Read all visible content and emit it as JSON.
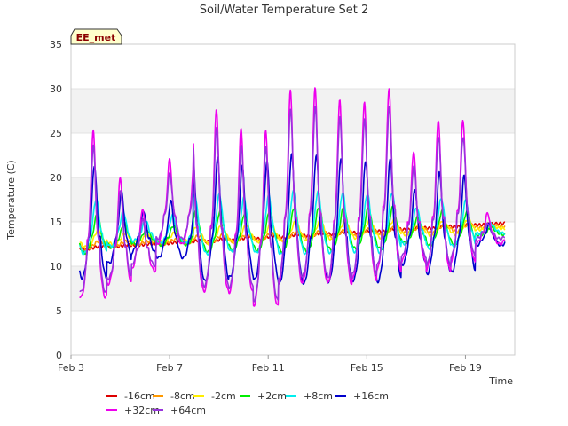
{
  "chart_data": {
    "type": "line",
    "title": "Soil/Water Temperature Set 2",
    "xlabel": "Time",
    "ylabel": "Temperature (C)",
    "badge": "EE_met",
    "ylim": [
      0,
      35
    ],
    "yticks": [
      0,
      5,
      10,
      15,
      20,
      25,
      30,
      35
    ],
    "xlim": [
      "2023-02-03",
      "2023-02-21"
    ],
    "xticks": [
      {
        "label": "Feb 3",
        "day": 3
      },
      {
        "label": "Feb 7",
        "day": 7
      },
      {
        "label": "Feb 11",
        "day": 11
      },
      {
        "label": "Feb 15",
        "day": 15
      },
      {
        "label": "Feb 19",
        "day": 19
      }
    ],
    "x_data_start_day": 3.35,
    "x_data_end_day": 20.6,
    "grid": "horizontal bands",
    "legend_position": "bottom",
    "series": [
      {
        "name": "-16cm",
        "color": "#dd0000",
        "base": 12.0,
        "slope": 0.165,
        "amp": 0.15,
        "phase": 3.4,
        "sharp": 1.0
      },
      {
        "name": "-8cm",
        "color": "#ff9900",
        "base": 12.3,
        "slope": 0.13,
        "amp": 0.6,
        "phase": 3.1,
        "sharp": 1.0
      },
      {
        "name": "-2cm",
        "color": "#ffee00",
        "base": 12.8,
        "slope": 0.09,
        "amp": 1.4,
        "phase": 2.6,
        "sharp": 1.4
      },
      {
        "name": "+2cm",
        "color": "#00ee00",
        "base": 13.0,
        "slope": 0.05,
        "amp": 3.2,
        "phase": 2.0,
        "sharp": 1.8
      },
      {
        "name": "+8cm",
        "color": "#00eeee",
        "base": 13.6,
        "slope": 0.03,
        "amp": 4.6,
        "phase": 1.5,
        "sharp": 2.2
      },
      {
        "name": "+16cm",
        "color": "#0000cc",
        "base": 13.2,
        "slope": 0.0,
        "amp": 9.5,
        "phase": 0.6,
        "sharp": 3.0
      },
      {
        "name": "+32cm",
        "color": "#ee00ee",
        "base": 15.5,
        "slope": 0.0,
        "amp": 12.0,
        "phase": 0.0,
        "sharp": 3.6
      },
      {
        "name": "+64cm",
        "color": "#9933dd",
        "base": 14.5,
        "slope": 0.0,
        "amp": 10.5,
        "phase": 0.1,
        "sharp": 3.4
      }
    ],
    "daily_peaks_plus32cm": [
      {
        "day": 3.9,
        "peak": 25.3,
        "low": 6.5
      },
      {
        "day": 5.0,
        "peak": 20.0,
        "low": 8.0
      },
      {
        "day": 5.9,
        "peak": 16.5,
        "low": 9.5
      },
      {
        "day": 7.0,
        "peak": 22.0,
        "low": 12.5
      },
      {
        "day": 8.9,
        "peak": 27.7,
        "low": 7.2
      },
      {
        "day": 9.9,
        "peak": 25.5,
        "low": 7.0
      },
      {
        "day": 10.9,
        "peak": 25.2,
        "low": 5.5
      },
      {
        "day": 11.9,
        "peak": 29.7,
        "low": 8.0
      },
      {
        "day": 12.9,
        "peak": 30.0,
        "low": 8.5
      },
      {
        "day": 13.9,
        "peak": 28.7,
        "low": 8.0
      },
      {
        "day": 14.9,
        "peak": 28.5,
        "low": 8.5
      },
      {
        "day": 15.9,
        "peak": 30.1,
        "low": 9.5
      },
      {
        "day": 16.9,
        "peak": 23.0,
        "low": 10.5
      },
      {
        "day": 17.9,
        "peak": 26.5,
        "low": 9.5
      },
      {
        "day": 18.9,
        "peak": 26.5,
        "low": 10.5
      },
      {
        "day": 19.9,
        "peak": 16.0,
        "low": 12.5
      }
    ]
  }
}
